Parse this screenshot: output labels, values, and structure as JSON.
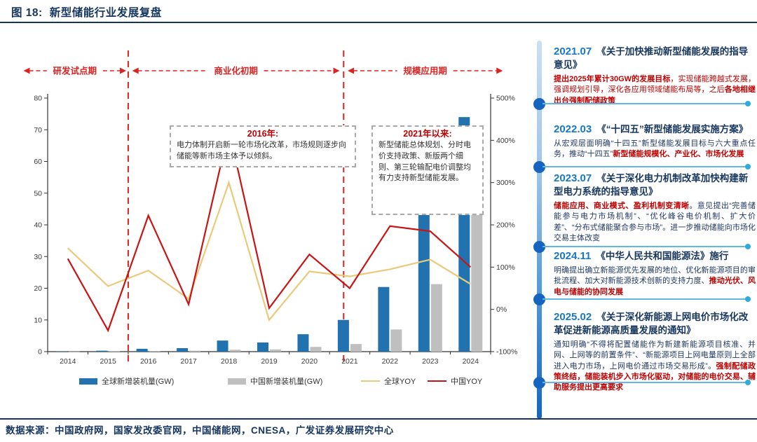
{
  "header": {
    "figure_no": "图 18:",
    "title": "新型储能行业发展复盘"
  },
  "footer": {
    "source": "数据来源：中国政府网，国家发改委官网，中国储能网，CNESA，广发证券发展研究中心"
  },
  "colors": {
    "navy": "#15355E",
    "accent_red": "#DD2222",
    "annotation_red": "#C00000",
    "bar_global_blue": "#2272B0",
    "bar_china_grey": "#BFBFBF",
    "line_global_yellow": "#EAC97A",
    "line_china_red": "#C81414",
    "timeline_date_blue": "#1778C8",
    "timeline_dot_blue": "#1565C0",
    "timeline_line_blue": "#5FB9E6"
  },
  "chart_data": {
    "type": "combo-bar-line",
    "title": "新型储能行业发展复盘",
    "categories": [
      "2014",
      "2015",
      "2016",
      "2017",
      "2018",
      "2019",
      "2020",
      "2021",
      "2022",
      "2023",
      "2024"
    ],
    "series": [
      {
        "name": "全球新增装机量(GW)",
        "type": "bar",
        "axis": "left",
        "color": "#2272B0",
        "values": [
          0.1,
          0.3,
          0.9,
          1.1,
          3.5,
          2.9,
          5.5,
          10,
          20.4,
          45.5,
          74
        ]
      },
      {
        "name": "中国新增装机量(GW)",
        "type": "bar",
        "axis": "left",
        "color": "#BFBFBF",
        "values": [
          0.05,
          0.1,
          0.2,
          0.3,
          0.6,
          0.7,
          1.5,
          2.4,
          7,
          21.3,
          43.5
        ]
      },
      {
        "name": "全球YOY",
        "type": "line",
        "axis": "right",
        "color": "#EAC97A",
        "values": [
          145,
          55,
          92,
          25,
          300,
          -25,
          90,
          78,
          95,
          118,
          60
        ]
      },
      {
        "name": "中国YOY",
        "type": "line",
        "axis": "right",
        "color": "#C81414",
        "values": [
          120,
          -50,
          222,
          12,
          425,
          3,
          130,
          50,
          197,
          185,
          100
        ]
      }
    ],
    "left_axis": {
      "min": 0,
      "max": 80,
      "step": 10
    },
    "right_axis": {
      "min": -100,
      "max": 500,
      "step": 100,
      "suffix": "%"
    },
    "grid": false,
    "legend_position": "bottom",
    "accent_red": "#DD2222",
    "dividers": [
      2,
      7.35
    ],
    "phases": [
      {
        "label": "研发试点期",
        "from": -0.6,
        "to": 1.95
      },
      {
        "label": "商业化初期",
        "from": 2.1,
        "to": 7.25
      },
      {
        "label": "规模应用期",
        "from": 7.45,
        "to": 11.3
      }
    ],
    "annotations": [
      {
        "title": "2016年:",
        "body": "电力体制开启新一轮市场化改革，市场规则逐步向储能等新市场主体予以倾斜。"
      },
      {
        "title": "2021年以来:",
        "body": "新型储能总体规划、分时电价支持政策、新版两个细则、第三轮输配电价调整均有力支持新型储能发展。"
      }
    ]
  },
  "timeline": {
    "items": [
      {
        "date": "2021.07",
        "title": "《关于加快推动新型储能发展的指导意见》",
        "body": [
          {
            "t": "提出2025年累计30GW的发展目标",
            "red": true,
            "b": true
          },
          {
            "t": "，实现储能跨越式发展，强调规划引导，深化各应用领域储能布局等，之后",
            "red": true
          },
          {
            "t": "各地相继出台强制配储政策",
            "red": true,
            "b": true
          }
        ]
      },
      {
        "date": "2022.03",
        "title": "《“十四五”新型储能发展实施方案》",
        "body": [
          {
            "t": "从宏观层面明确“十四五”新型储能发展目标与六大重点任务，推动“十四五”"
          },
          {
            "t": "新型储能规模化、产业化、市场化发展",
            "red": true,
            "b": true
          }
        ]
      },
      {
        "date": "2023.07",
        "title": "《关于深化电力机制改革加快构建新型电力系统的指导意见》",
        "body": [
          {
            "t": "储能应用、商业模式、盈利机制变清晰",
            "red": true,
            "b": true
          },
          {
            "t": "。意见提出“完善储能参与电力市场机制”、“优化峰谷电价机制、扩大价差”、“分布式储能聚合参与市场”。进一步推动储能向市场化交易主体改变"
          }
        ]
      },
      {
        "date": "2024.11",
        "title": "《中华人民共和国能源法》施行",
        "body": [
          {
            "t": "明确提出确立新能源优先发展的地位、优化新能源项目的审批流程、加大对新能源技术创新的支持力度、"
          },
          {
            "t": "推动光伏、风电与储能的协同发展",
            "red": true,
            "b": true
          }
        ]
      },
      {
        "date": "2025.02",
        "title": "《关于深化新能源上网电价市场化改革促进新能源高质量发展的通知》",
        "body": [
          {
            "t": "通知明确“不得将配置储能作为新建新能源项目核准、并网、上网等的前置条件”、“新能源项目上网电量原则上全部进入电力市场，上网电价通过市场交易形成”。"
          },
          {
            "t": "强制配储政策终结，储能装机步入市场化驱动，对储能的电价交易、辅助服务提出更高要求",
            "red": true,
            "b": true
          }
        ]
      }
    ]
  }
}
